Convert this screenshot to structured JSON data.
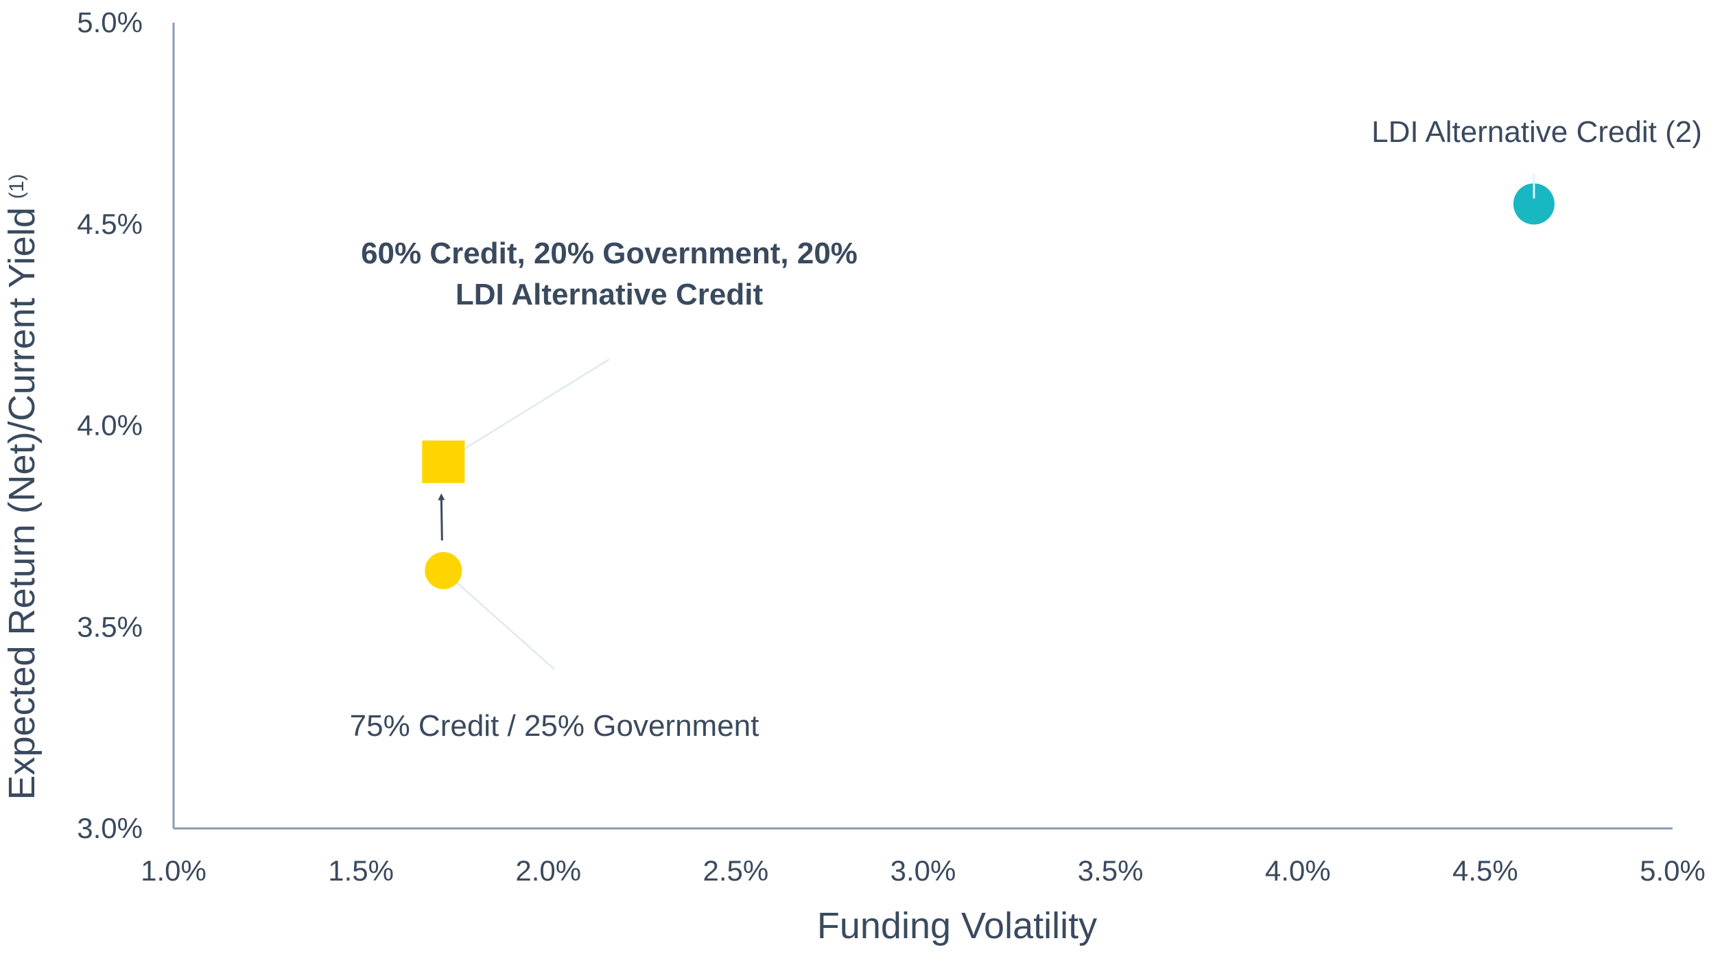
{
  "chart_data": {
    "type": "scatter",
    "title": "",
    "xlabel": "Funding Volatility",
    "ylabel": "Expected Return (Net)/Current Yield",
    "ylabel_superscript": "(1)",
    "xlim": [
      0.01,
      0.05
    ],
    "ylim": [
      0.03,
      0.05
    ],
    "x_ticks": [
      "1.0%",
      "1.5%",
      "2.0%",
      "2.5%",
      "3.0%",
      "3.5%",
      "4.0%",
      "4.5%",
      "5.0%"
    ],
    "y_ticks": [
      "3.0%",
      "3.5%",
      "4.0%",
      "4.5%",
      "5.0%"
    ],
    "grid": false,
    "legend": "none",
    "points": [
      {
        "x": 0.0172,
        "y": 0.0364,
        "marker": "circle",
        "color": "#ffd500"
      },
      {
        "x": 0.0172,
        "y": 0.0391,
        "marker": "square",
        "color": "#ffd500"
      },
      {
        "x": 0.0463,
        "y": 0.0455,
        "marker": "circle",
        "color": "#19b7c2"
      }
    ],
    "annotations": [
      {
        "lines": [
          "75% Credit / 25% Government"
        ],
        "bold": false
      },
      {
        "lines": [
          "60% Credit, 20% Government, 20%",
          "LDI Alternative Credit"
        ],
        "bold": true
      },
      {
        "lines": [
          "LDI Alternative Credit (2)"
        ],
        "bold": false
      }
    ],
    "colors": {
      "axis": "#8a9bb0",
      "text": "#3a4a5e",
      "leader": "#d6e6f2",
      "arrow": "#3a4a5e"
    }
  }
}
